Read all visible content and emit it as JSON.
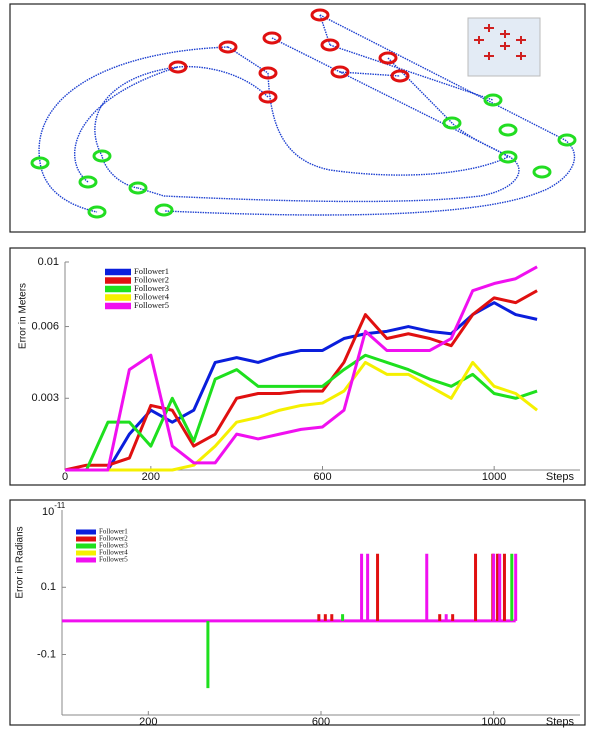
{
  "chart_data": [
    {
      "type": "line",
      "ylabel": "Error in Meters",
      "xlabel": "Steps",
      "x": [
        0,
        50,
        100,
        150,
        200,
        250,
        300,
        350,
        400,
        450,
        500,
        550,
        600,
        650,
        700,
        750,
        800,
        850,
        900,
        950,
        1000,
        1050,
        1100
      ],
      "series": [
        {
          "name": "Follower1",
          "color": "#0a1edc",
          "values": [
            0,
            0,
            0,
            0.0015,
            0.0025,
            0.002,
            0.0025,
            0.0045,
            0.0047,
            0.0045,
            0.0048,
            0.005,
            0.005,
            0.0055,
            0.0057,
            0.0058,
            0.006,
            0.0058,
            0.0057,
            0.0065,
            0.007,
            0.0065,
            0.0063
          ]
        },
        {
          "name": "Follower2",
          "color": "#e01010",
          "values": [
            0,
            0.0002,
            0.0002,
            0.0005,
            0.0027,
            0.0025,
            0.001,
            0.0015,
            0.003,
            0.0032,
            0.0032,
            0.0033,
            0.0033,
            0.0045,
            0.0065,
            0.0055,
            0.0057,
            0.0055,
            0.0052,
            0.0065,
            0.0072,
            0.007,
            0.0075
          ]
        },
        {
          "name": "Follower3",
          "color": "#1ee01e",
          "values": [
            0,
            0,
            0.002,
            0.002,
            0.001,
            0.003,
            0.0012,
            0.0038,
            0.0042,
            0.0035,
            0.0035,
            0.0035,
            0.0035,
            0.0042,
            0.0048,
            0.0045,
            0.0042,
            0.0038,
            0.0035,
            0.004,
            0.0032,
            0.003,
            0.0033
          ]
        },
        {
          "name": "Follower4",
          "color": "#f5f000",
          "values": [
            0,
            0,
            0,
            0,
            0,
            0,
            0.0002,
            0.001,
            0.002,
            0.0022,
            0.0025,
            0.0027,
            0.0028,
            0.0033,
            0.0045,
            0.004,
            0.004,
            0.0035,
            0.003,
            0.0045,
            0.0035,
            0.0032,
            0.0025
          ]
        },
        {
          "name": "Follower5",
          "color": "#f010f0",
          "values": [
            0,
            0,
            0,
            0.0042,
            0.0048,
            0.001,
            0.0003,
            0.0003,
            0.0015,
            0.0013,
            0.0015,
            0.0017,
            0.0018,
            0.0025,
            0.0058,
            0.005,
            0.005,
            0.005,
            0.0055,
            0.0075,
            0.0078,
            0.008,
            0.0085
          ]
        }
      ],
      "xlim": [
        0,
        1200
      ],
      "xticks": [
        0,
        200,
        600,
        1000
      ],
      "ylim": [
        0,
        0.0087
      ],
      "yticks": [
        0.003,
        0.006,
        {
          "value": 0.0087,
          "label": "0.01"
        }
      ]
    },
    {
      "type": "stem",
      "ylabel": "Error in Radians",
      "xlabel": "Steps",
      "multiplier": {
        "base": "10",
        "exponent": "-11"
      },
      "series": [
        {
          "name": "Follower1",
          "color": "#0a1edc",
          "x": [],
          "values": []
        },
        {
          "name": "Follower2",
          "color": "#e01010",
          "x": [
            595,
            610,
            625,
            731,
            875,
            905,
            958,
            998,
            1009,
            1025
          ],
          "values": [
            0.02,
            0.02,
            0.02,
            0.2,
            0.02,
            0.02,
            0.2,
            0.2,
            0.2,
            0.2
          ]
        },
        {
          "name": "Follower3",
          "color": "#1ee01e",
          "x": [
            338,
            650,
            1042
          ],
          "values": [
            -0.2,
            0.02,
            0.2
          ]
        },
        {
          "name": "Follower4",
          "color": "#f5f000",
          "x": [],
          "values": []
        },
        {
          "name": "Follower5",
          "color": "#f010f0",
          "x": [
            694,
            708,
            845,
            890,
            1000,
            1014,
            1051
          ],
          "values": [
            0.2,
            0.2,
            0.2,
            0.02,
            0.2,
            0.2,
            0.2
          ]
        }
      ],
      "xlim": [
        0,
        1200
      ],
      "xticks": [
        200,
        600,
        1000
      ],
      "ylim": [
        -0.28,
        0.33
      ],
      "yticks": [
        -0.1,
        0.1
      ]
    }
  ]
}
